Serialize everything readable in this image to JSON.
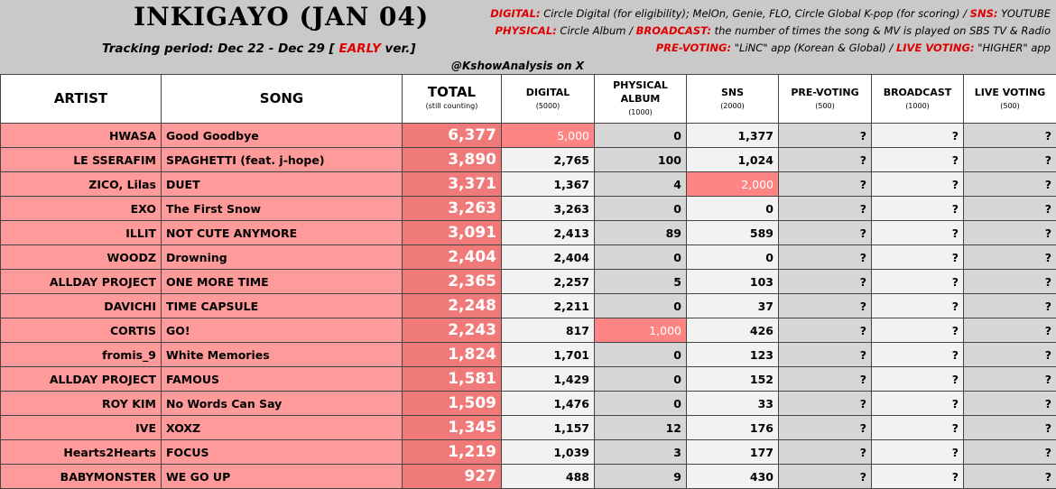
{
  "header": {
    "title": "INKIGAYO (JAN 04)",
    "tracking": {
      "prefix": "Tracking period: Dec 22 - Dec 29 [",
      "early": "EARLY",
      "suffix": "ver.]"
    },
    "notes": [
      [
        "DIGITAL:",
        "Circle Digital (for eligibility); MelOn, Genie, FLO, Circle Global K-pop (for scoring) /",
        "SNS:",
        "YOUTUBE"
      ],
      [
        "PHYSICAL:",
        "Circle Album /",
        "BROADCAST:",
        "the number of times the song & MV is played on SBS TV & Radio"
      ],
      [
        "PRE-VOTING:",
        "\"LiNC\" app (Korean & Global) /",
        "LIVE VOTING:",
        "\"HIGHER\" app"
      ]
    ],
    "handle": "@KshowAnalysis on X"
  },
  "table": {
    "columns": [
      {
        "name": "ARTIST"
      },
      {
        "name": "SONG"
      },
      {
        "name": "TOTAL",
        "sub": "(still counting)"
      },
      {
        "name": "DIGITAL",
        "sub": "(5000)"
      },
      {
        "name": "PHYSICAL ALBUM",
        "sub": "(1000)"
      },
      {
        "name": "SNS",
        "sub": "(2000)"
      },
      {
        "name": "PRE-VOTING",
        "sub": "(500)"
      },
      {
        "name": "BROADCAST",
        "sub": "(1000)"
      },
      {
        "name": "LIVE VOTING",
        "sub": "(500)"
      }
    ],
    "rows": [
      [
        "HWASA",
        "Good Goodbye",
        "6,377",
        "5,000",
        "0",
        "1,377",
        "?",
        "?",
        "?"
      ],
      [
        "LE SSERAFIM",
        "SPAGHETTI (feat. j-hope)",
        "3,890",
        "2,765",
        "100",
        "1,024",
        "?",
        "?",
        "?"
      ],
      [
        "ZICO, Lilas",
        "DUET",
        "3,371",
        "1,367",
        "4",
        "2,000",
        "?",
        "?",
        "?"
      ],
      [
        "EXO",
        "The First Snow",
        "3,263",
        "3,263",
        "0",
        "0",
        "?",
        "?",
        "?"
      ],
      [
        "ILLIT",
        "NOT CUTE ANYMORE",
        "3,091",
        "2,413",
        "89",
        "589",
        "?",
        "?",
        "?"
      ],
      [
        "WOODZ",
        "Drowning",
        "2,404",
        "2,404",
        "0",
        "0",
        "?",
        "?",
        "?"
      ],
      [
        "ALLDAY PROJECT",
        "ONE MORE TIME",
        "2,365",
        "2,257",
        "5",
        "103",
        "?",
        "?",
        "?"
      ],
      [
        "DAVICHI",
        "TIME CAPSULE",
        "2,248",
        "2,211",
        "0",
        "37",
        "?",
        "?",
        "?"
      ],
      [
        "CORTIS",
        "GO!",
        "2,243",
        "817",
        "1,000",
        "426",
        "?",
        "?",
        "?"
      ],
      [
        "fromis_9",
        "White Memories",
        "1,824",
        "1,701",
        "0",
        "123",
        "?",
        "?",
        "?"
      ],
      [
        "ALLDAY PROJECT",
        "FAMOUS",
        "1,581",
        "1,429",
        "0",
        "152",
        "?",
        "?",
        "?"
      ],
      [
        "ROY KIM",
        "No Words Can Say",
        "1,509",
        "1,476",
        "0",
        "33",
        "?",
        "?",
        "?"
      ],
      [
        "IVE",
        "XOXZ",
        "1,345",
        "1,157",
        "12",
        "176",
        "?",
        "?",
        "?"
      ],
      [
        "Hearts2Hearts",
        "FOCUS",
        "1,219",
        "1,039",
        "3",
        "177",
        "?",
        "?",
        "?"
      ],
      [
        "BABYMONSTER",
        "WE GO UP",
        "927",
        "488",
        "9",
        "430",
        "?",
        "?",
        "?"
      ]
    ]
  }
}
